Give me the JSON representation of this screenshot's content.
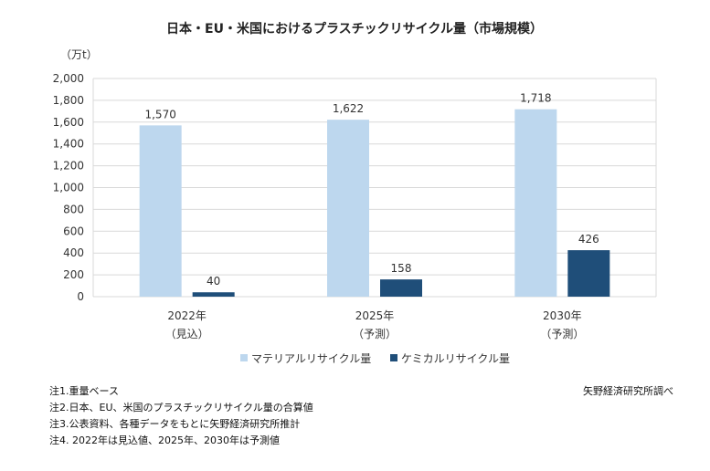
{
  "chart_data": {
    "type": "bar",
    "title": "日本・EU・米国におけるプラスチックリサイクル量（市場規模）",
    "unit_label": "（万t）",
    "categories": [
      {
        "year": "2022年",
        "sub": "（見込）"
      },
      {
        "year": "2025年",
        "sub": "（予測）"
      },
      {
        "year": "2030年",
        "sub": "（予測）"
      }
    ],
    "series": [
      {
        "name": "マテリアルリサイクル量",
        "color": "#bdd7ee",
        "values": [
          1570,
          1622,
          1718
        ],
        "labels": [
          "1,570",
          "1,622",
          "1,718"
        ]
      },
      {
        "name": "ケミカルリサイクル量",
        "color": "#1f4e79",
        "values": [
          40,
          158,
          426
        ],
        "labels": [
          "40",
          "158",
          "426"
        ]
      }
    ],
    "ylim": [
      0,
      2000
    ],
    "yticks": [
      "0",
      "200",
      "400",
      "600",
      "800",
      "1,000",
      "1,200",
      "1,400",
      "1,600",
      "1,800",
      "2,000"
    ],
    "grid": true,
    "legend_position": "bottom"
  },
  "notes": [
    "注1.重量ベース",
    "注2.日本、EU、米国のプラスチックリサイクル量の合算値",
    "注3.公表資料、各種データをもとに矢野経済研究所推計",
    "注4. 2022年は見込値、2025年、2030年は予測値"
  ],
  "source": "矢野経済研究所調べ"
}
